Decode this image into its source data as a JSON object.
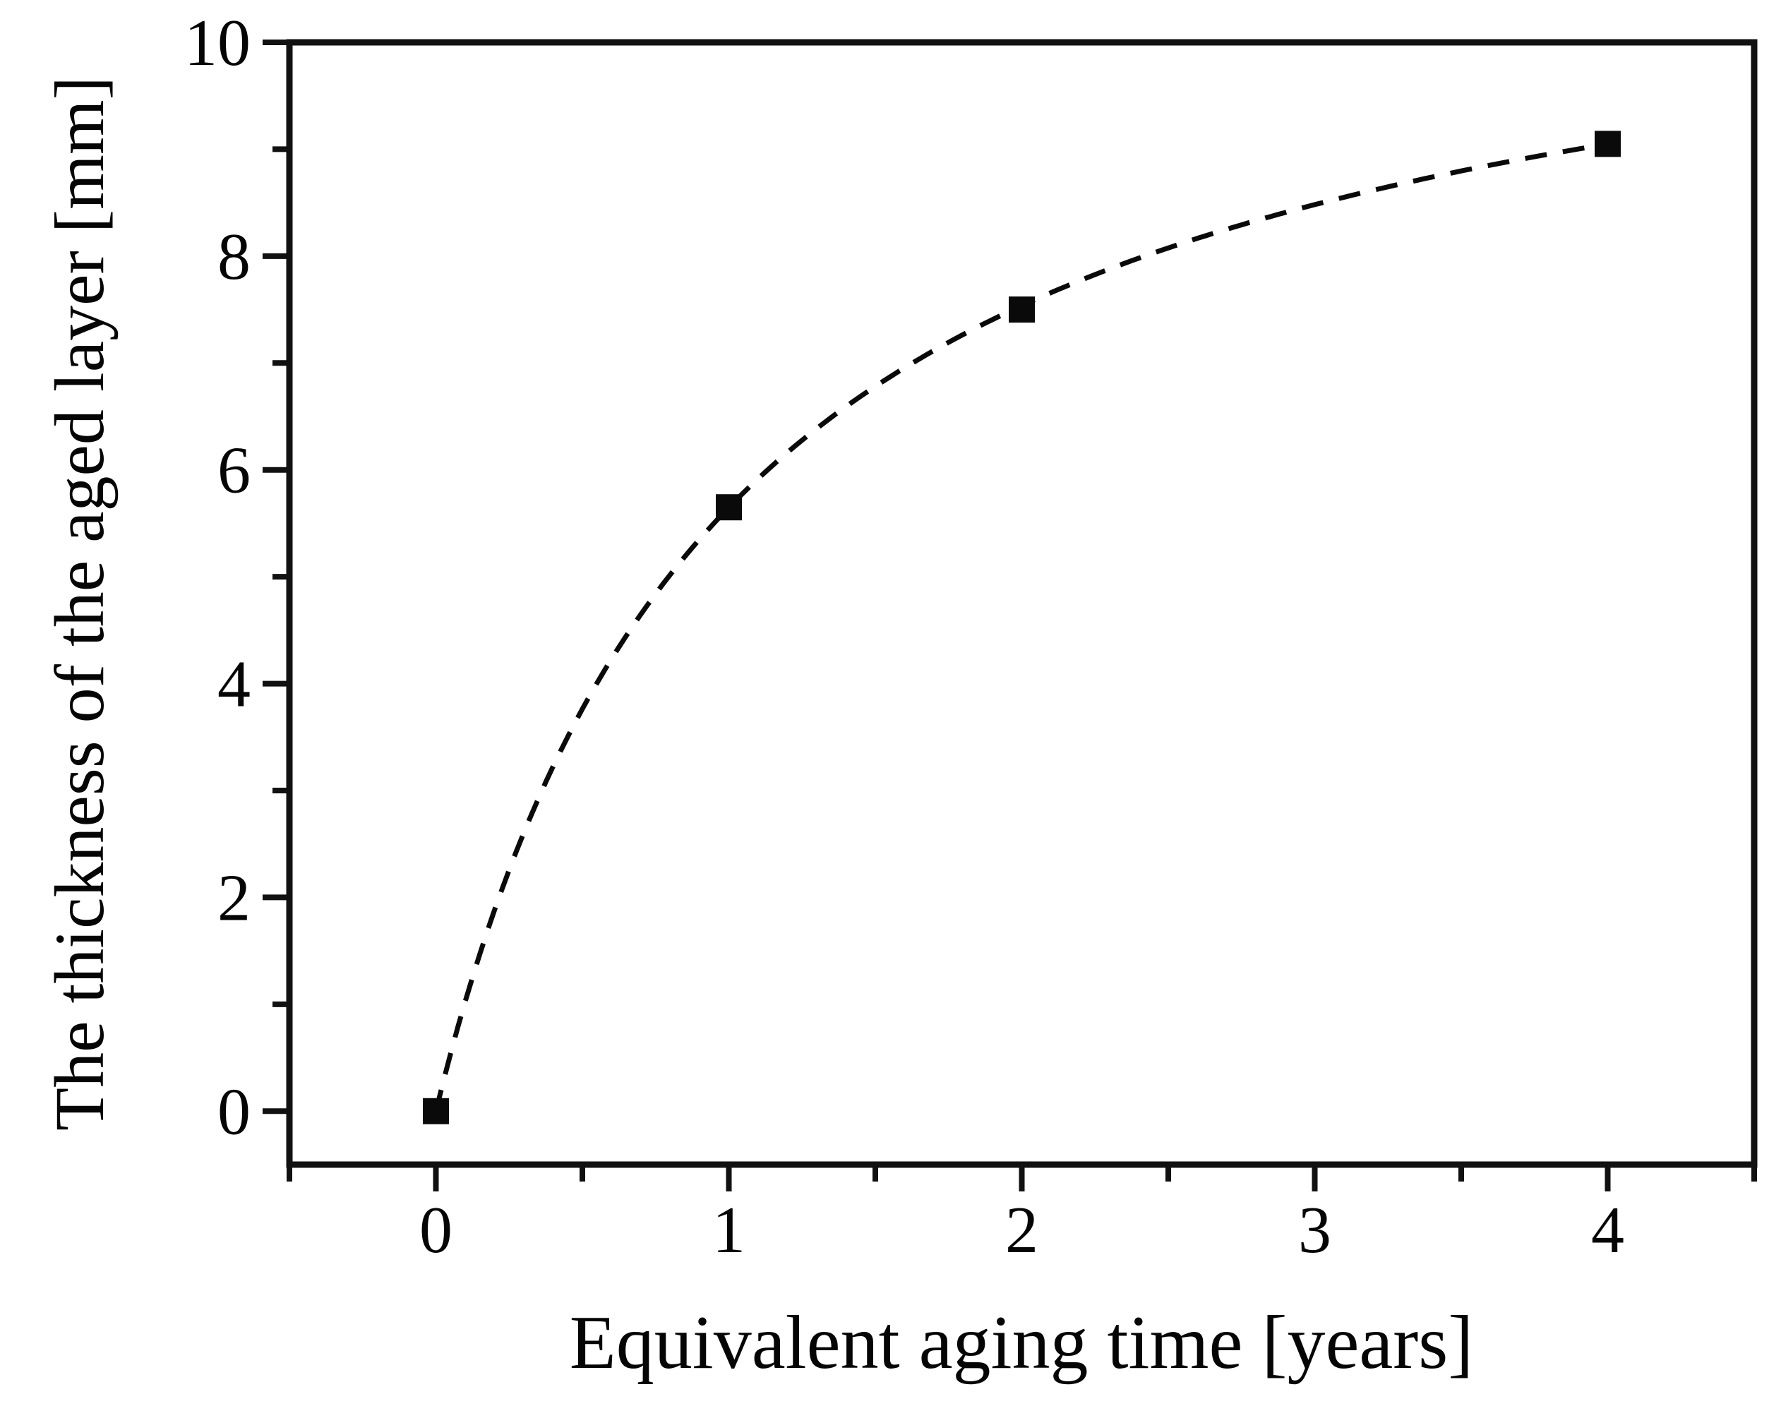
{
  "chart_data": {
    "type": "scatter",
    "title": "",
    "xlabel": "Equivalent aging time [years]",
    "ylabel": "The thickness of the aged layer [mm]",
    "xlim": [
      -0.5,
      4.5
    ],
    "ylim": [
      -0.5,
      10
    ],
    "x_major_ticks": [
      0,
      1,
      2,
      3,
      4
    ],
    "x_tick_labels": [
      "0",
      "1",
      "2",
      "3",
      "4"
    ],
    "x_minor_ticks": [
      -0.5,
      0.5,
      1.5,
      2.5,
      3.5,
      4.5
    ],
    "y_major_ticks": [
      0,
      2,
      4,
      6,
      8,
      10
    ],
    "y_tick_labels": [
      "0",
      "2",
      "4",
      "6",
      "8",
      "10"
    ],
    "y_minor_ticks": [
      1,
      3,
      5,
      7,
      9
    ],
    "grid": false,
    "legend": "none",
    "series": [
      {
        "name": "aged layer thickness",
        "marker": "filled-square",
        "line": "dashed",
        "color": "#0a0a0a",
        "points": [
          [
            0,
            0
          ],
          [
            1,
            5.65
          ],
          [
            2,
            7.5
          ],
          [
            4,
            9.05
          ]
        ]
      }
    ],
    "trend_curve": {
      "form": "y = a*x/(b+x)",
      "a": 11.32,
      "b": 1.004,
      "x_range": [
        0,
        4
      ],
      "style": "dashed"
    },
    "colors": {
      "axis": "#111111",
      "data": "#0a0a0a",
      "background": "#ffffff",
      "text": "#050505"
    }
  }
}
